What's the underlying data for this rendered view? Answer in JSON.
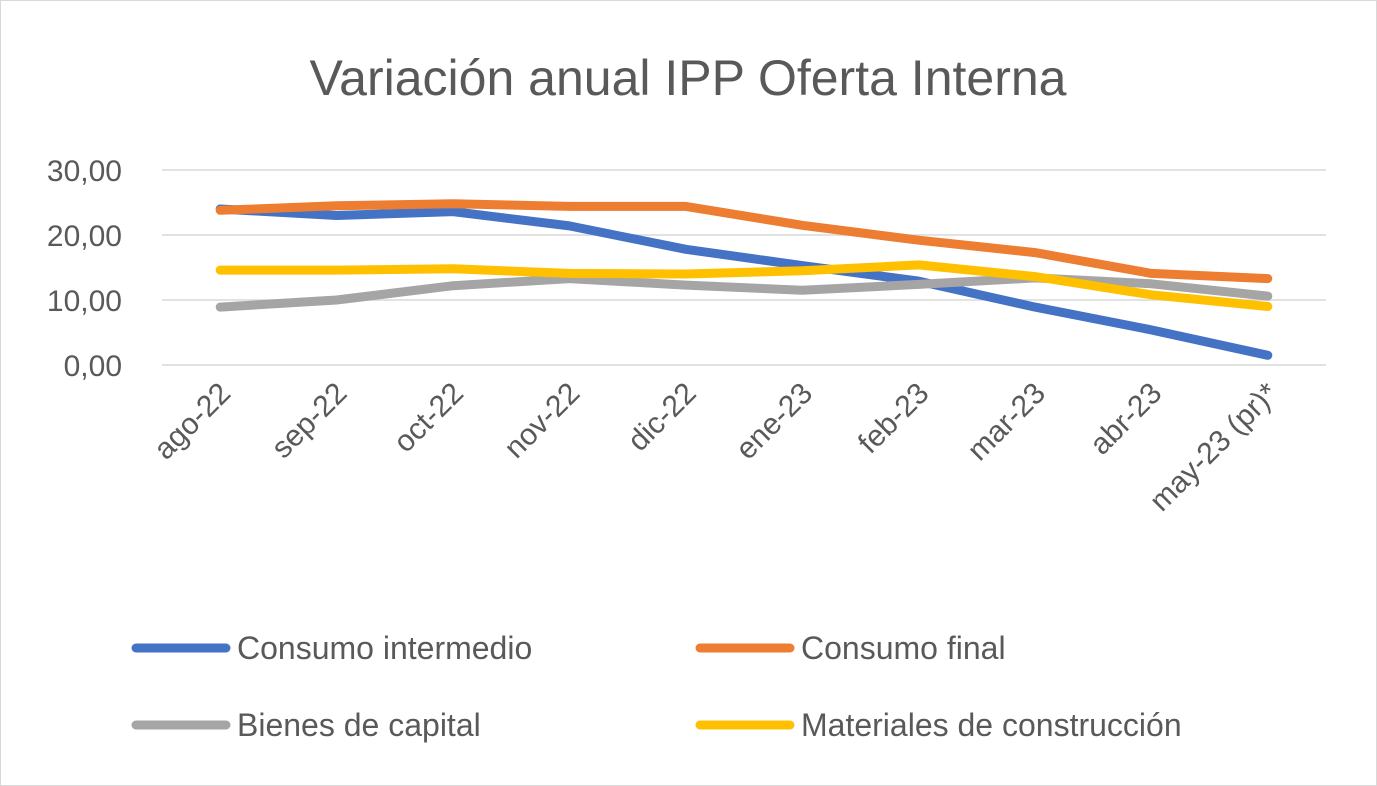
{
  "chart_data": {
    "type": "line",
    "title": "Variación anual IPP Oferta Interna",
    "xlabel": "",
    "ylabel": "",
    "ylim": [
      0,
      30
    ],
    "yticks": [
      0,
      10,
      20,
      30
    ],
    "ytick_labels": [
      "0,00",
      "10,00",
      "20,00",
      "30,00"
    ],
    "grid": true,
    "legend_position": "bottom",
    "categories": [
      "ago-22",
      "sep-22",
      "oct-22",
      "nov-22",
      "dic-22",
      "ene-23",
      "feb-23",
      "mar-23",
      "abr-23",
      "may-23 (pr)*"
    ],
    "series": [
      {
        "name": "Consumo intermedio",
        "color": "#4472c4",
        "values": [
          24.0,
          23.0,
          23.6,
          21.4,
          17.8,
          15.3,
          12.9,
          8.9,
          5.4,
          1.5
        ]
      },
      {
        "name": "Consumo final",
        "color": "#ed7d31",
        "values": [
          23.8,
          24.5,
          24.8,
          24.4,
          24.4,
          21.5,
          19.2,
          17.3,
          14.1,
          13.3
        ]
      },
      {
        "name": "Bienes de capital",
        "color": "#a5a5a5",
        "values": [
          8.9,
          10.0,
          12.2,
          13.3,
          12.3,
          11.5,
          12.4,
          13.4,
          12.5,
          10.6
        ]
      },
      {
        "name": "Materiales de construcción",
        "color": "#ffc000",
        "values": [
          14.6,
          14.6,
          14.8,
          14.1,
          14.0,
          14.5,
          15.4,
          13.6,
          10.8,
          9.0
        ]
      }
    ]
  }
}
